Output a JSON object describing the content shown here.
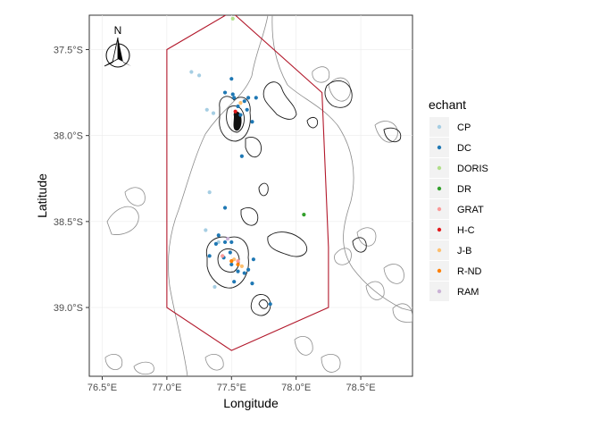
{
  "map": {
    "xlabel": "Longitude",
    "ylabel": "Latitude",
    "x_ticks": [
      "76.5°E",
      "77.0°E",
      "77.5°E",
      "78.0°E",
      "78.5°E"
    ],
    "y_ticks": [
      "37.5°S",
      "38.0°S",
      "38.5°S",
      "39.0°S"
    ],
    "north_arrow_label": "N",
    "lon_range": [
      76.4,
      78.9
    ],
    "lat_range": [
      -39.4,
      -37.3
    ],
    "grid": true,
    "legend_position": "right"
  },
  "legend": {
    "title": "echant",
    "items": [
      {
        "label": "CP",
        "color": "#a6cee3"
      },
      {
        "label": "DC",
        "color": "#1f78b4"
      },
      {
        "label": "DORIS",
        "color": "#b2df8a"
      },
      {
        "label": "DR",
        "color": "#33a02c"
      },
      {
        "label": "GRAT",
        "color": "#fb9a99"
      },
      {
        "label": "H-C",
        "color": "#e31a1c"
      },
      {
        "label": "J-B",
        "color": "#fdbf6f"
      },
      {
        "label": "R-ND",
        "color": "#ff7f00"
      },
      {
        "label": "RAM",
        "color": "#cab2d6"
      }
    ]
  },
  "chart_data": {
    "type": "scatter",
    "xlabel": "Longitude",
    "ylabel": "Latitude",
    "polygon_color": "#b2182b",
    "study_area_polygon": [
      [
        77.5,
        -37.28
      ],
      [
        78.2,
        -37.75
      ],
      [
        78.25,
        -38.65
      ],
      [
        78.25,
        -39.0
      ],
      [
        77.5,
        -39.25
      ],
      [
        77.0,
        -39.0
      ],
      [
        77.0,
        -37.5
      ],
      [
        77.5,
        -37.28
      ]
    ],
    "series": [
      {
        "name": "CP",
        "color": "#a6cee3",
        "points": [
          [
            77.19,
            -37.63
          ],
          [
            77.25,
            -37.65
          ],
          [
            77.31,
            -37.85
          ],
          [
            77.36,
            -37.87
          ],
          [
            77.33,
            -38.33
          ],
          [
            77.3,
            -38.55
          ],
          [
            77.4,
            -38.62
          ],
          [
            77.37,
            -38.88
          ]
        ]
      },
      {
        "name": "DC",
        "color": "#1f78b4",
        "points": [
          [
            77.5,
            -37.67
          ],
          [
            77.45,
            -37.75
          ],
          [
            77.52,
            -37.78
          ],
          [
            77.55,
            -37.83
          ],
          [
            77.6,
            -37.8
          ],
          [
            77.62,
            -37.85
          ],
          [
            77.57,
            -37.88
          ],
          [
            77.66,
            -37.92
          ],
          [
            77.51,
            -37.76
          ],
          [
            77.63,
            -37.78
          ],
          [
            77.69,
            -37.78
          ],
          [
            77.58,
            -38.12
          ],
          [
            77.45,
            -38.42
          ],
          [
            77.4,
            -38.58
          ],
          [
            77.45,
            -38.62
          ],
          [
            77.44,
            -38.71
          ],
          [
            77.49,
            -38.68
          ],
          [
            77.5,
            -38.75
          ],
          [
            77.55,
            -38.79
          ],
          [
            77.6,
            -38.8
          ],
          [
            77.63,
            -38.78
          ],
          [
            77.52,
            -38.85
          ],
          [
            77.66,
            -38.86
          ],
          [
            77.67,
            -38.72
          ],
          [
            77.33,
            -38.7
          ],
          [
            77.5,
            -38.62
          ],
          [
            77.38,
            -38.63
          ],
          [
            77.8,
            -38.98
          ]
        ]
      },
      {
        "name": "DORIS",
        "color": "#b2df8a",
        "points": [
          [
            77.51,
            -37.32
          ]
        ]
      },
      {
        "name": "DR",
        "color": "#33a02c",
        "points": [
          [
            78.06,
            -38.46
          ]
        ]
      },
      {
        "name": "GRAT",
        "color": "#fb9a99",
        "points": [
          [
            77.43,
            -38.7
          ],
          [
            77.55,
            -38.73
          ]
        ]
      },
      {
        "name": "H-C",
        "color": "#e31a1c",
        "points": [
          [
            77.53,
            -37.86
          ]
        ]
      },
      {
        "name": "J-B",
        "color": "#fdbf6f",
        "points": [
          [
            77.57,
            -37.81
          ],
          [
            77.52,
            -38.72
          ],
          [
            77.58,
            -38.76
          ]
        ]
      },
      {
        "name": "R-ND",
        "color": "#ff7f00",
        "points": [
          [
            77.55,
            -38.75
          ],
          [
            77.5,
            -38.73
          ]
        ]
      },
      {
        "name": "RAM",
        "color": "#cab2d6",
        "points": [
          [
            77.47,
            -38.6
          ]
        ]
      }
    ]
  }
}
